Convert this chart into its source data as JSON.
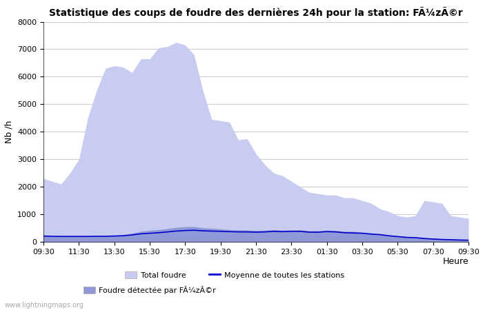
{
  "title": "Statistique des coups de foudre des dernières 24h pour la station: FÃ¼zÃ©r",
  "ylabel": "Nb /h",
  "xlabel": "Heure",
  "watermark": "www.lightningmaps.org",
  "ylim": [
    0,
    8000
  ],
  "yticks": [
    0,
    1000,
    2000,
    3000,
    4000,
    5000,
    6000,
    7000,
    8000
  ],
  "xtick_labels": [
    "09:30",
    "11:30",
    "13:30",
    "15:30",
    "17:30",
    "19:30",
    "21:30",
    "23:30",
    "01:30",
    "03:30",
    "05:30",
    "07:30",
    "09:30"
  ],
  "total_foudre_color": "#c8ccf0",
  "foudre_detectee_color": "#9099d8",
  "moyenne_color": "#0000cc",
  "bg_color": "#ffffff",
  "grid_color": "#cccccc",
  "total_foudre": [
    2300,
    2200,
    2100,
    2500,
    3000,
    4500,
    5500,
    6300,
    6400,
    6350,
    6150,
    6650,
    6650,
    7050,
    7100,
    7250,
    7150,
    6800,
    5500,
    4450,
    4400,
    4350,
    3700,
    3750,
    3200,
    2800,
    2500,
    2400,
    2200,
    2000,
    1800,
    1750,
    1700,
    1700,
    1600,
    1600,
    1500,
    1400,
    1200,
    1100,
    950,
    900,
    950,
    1500,
    1450,
    1400,
    950,
    900,
    850
  ],
  "foudre_detectee": [
    220,
    200,
    200,
    200,
    200,
    200,
    200,
    200,
    230,
    260,
    310,
    380,
    420,
    440,
    480,
    520,
    550,
    550,
    510,
    490,
    470,
    440,
    430,
    430,
    410,
    420,
    440,
    420,
    430,
    430,
    400,
    400,
    420,
    410,
    380,
    380,
    350,
    320,
    300,
    250,
    220,
    190,
    180,
    150,
    130,
    110,
    100,
    90,
    80
  ],
  "moyenne": [
    210,
    200,
    195,
    195,
    195,
    195,
    200,
    200,
    210,
    220,
    250,
    290,
    310,
    330,
    360,
    390,
    410,
    420,
    400,
    390,
    380,
    370,
    360,
    360,
    350,
    360,
    380,
    370,
    380,
    380,
    350,
    350,
    370,
    360,
    330,
    320,
    310,
    280,
    260,
    220,
    190,
    160,
    150,
    120,
    100,
    85,
    75,
    65,
    60
  ],
  "legend_total_label": "Total foudre",
  "legend_moyenne_label": "Moyenne de toutes les stations",
  "legend_detectee_label": "Foudre détectée par FÃ¼zÃ©r"
}
